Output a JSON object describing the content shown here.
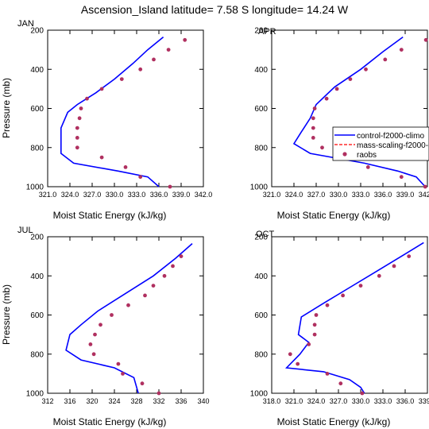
{
  "figure": {
    "title": "Ascension_Island  latitude= 7.58 S longitude= 14.24 W"
  },
  "legend": {
    "items": [
      {
        "label": "control-f2000-climo",
        "style": "solid",
        "color": "#0000ff"
      },
      {
        "label": "mass-scaling-f2000-",
        "style": "dashed",
        "color": "#ff0000"
      },
      {
        "label": "raobs",
        "style": "dots",
        "color": "#b03060"
      }
    ]
  },
  "chart_data": [
    {
      "type": "line",
      "panel": "JAN",
      "title": "JAN",
      "xlabel": "Moist Static Energy (kJ/kg)",
      "ylabel": "Pressure (mb)",
      "xlim": [
        321.0,
        342.0
      ],
      "ylim": [
        200,
        1000
      ],
      "y_reversed": true,
      "xticks": [
        "321.0",
        "324.0",
        "327.0",
        "330.0",
        "333.0",
        "336.0",
        "339.0",
        "342.0"
      ],
      "yticks": [
        200,
        400,
        600,
        800,
        1000
      ],
      "series": [
        {
          "name": "control-f2000-climo",
          "color": "#0000ff",
          "style": "solid",
          "points": [
            [
              336.6,
              235
            ],
            [
              334.5,
              300
            ],
            [
              332.5,
              370
            ],
            [
              330.0,
              450
            ],
            [
              327.5,
              520
            ],
            [
              325.0,
              580
            ],
            [
              323.7,
              620
            ],
            [
              322.8,
              700
            ],
            [
              322.8,
              830
            ],
            [
              324.5,
              880
            ],
            [
              330.5,
              920
            ],
            [
              334.5,
              950
            ],
            [
              336.0,
              1000
            ]
          ]
        },
        {
          "name": "raobs",
          "color": "#b03060",
          "style": "dots",
          "points": [
            [
              339.5,
              250
            ],
            [
              337.3,
              300
            ],
            [
              335.3,
              350
            ],
            [
              333.5,
              400
            ],
            [
              331.0,
              450
            ],
            [
              328.3,
              500
            ],
            [
              326.3,
              550
            ],
            [
              325.5,
              600
            ],
            [
              325.3,
              650
            ],
            [
              325.0,
              700
            ],
            [
              325.0,
              750
            ],
            [
              325.0,
              800
            ],
            [
              328.3,
              850
            ],
            [
              331.5,
              900
            ],
            [
              333.5,
              950
            ],
            [
              337.5,
              1000
            ]
          ]
        }
      ]
    },
    {
      "type": "line",
      "panel": "APR",
      "title": "APR",
      "xlabel": "Moist Static Energy (kJ/kg)",
      "ylabel": "",
      "xlim": [
        321.0,
        342.0
      ],
      "ylim": [
        200,
        1000
      ],
      "y_reversed": true,
      "xticks": [
        "321.0",
        "324.0",
        "327.0",
        "330.0",
        "333.0",
        "336.0",
        "339.0",
        "342.0"
      ],
      "yticks": [
        200,
        400,
        600,
        800,
        1000
      ],
      "series": [
        {
          "name": "control-f2000-climo",
          "color": "#0000ff",
          "style": "solid",
          "points": [
            [
              338.7,
              235
            ],
            [
              336.0,
              310
            ],
            [
              333.0,
              400
            ],
            [
              329.5,
              490
            ],
            [
              327.0,
              580
            ],
            [
              326.2,
              650
            ],
            [
              325.0,
              720
            ],
            [
              324.0,
              780
            ],
            [
              326.2,
              830
            ],
            [
              333.5,
              880
            ],
            [
              338.0,
              920
            ],
            [
              340.5,
              950
            ],
            [
              341.7,
              1000
            ]
          ]
        },
        {
          "name": "raobs",
          "color": "#b03060",
          "style": "dots",
          "points": [
            [
              341.8,
              250
            ],
            [
              338.5,
              300
            ],
            [
              336.3,
              350
            ],
            [
              333.7,
              400
            ],
            [
              331.6,
              450
            ],
            [
              329.8,
              500
            ],
            [
              328.4,
              550
            ],
            [
              326.8,
              600
            ],
            [
              326.6,
              650
            ],
            [
              326.6,
              700
            ],
            [
              326.6,
              750
            ],
            [
              327.8,
              800
            ],
            [
              331.3,
              850
            ],
            [
              334.0,
              900
            ],
            [
              338.5,
              950
            ],
            [
              341.7,
              1000
            ]
          ]
        }
      ]
    },
    {
      "type": "line",
      "panel": "JUL",
      "title": "JUL",
      "xlabel": "Moist Static Energy (kJ/kg)",
      "ylabel": "Pressure (mb)",
      "xlim": [
        312,
        340
      ],
      "ylim": [
        200,
        1000
      ],
      "y_reversed": true,
      "xticks": [
        "312",
        "316",
        "320",
        "324",
        "328",
        "332",
        "336",
        "340"
      ],
      "yticks": [
        200,
        400,
        600,
        800,
        1000
      ],
      "series": [
        {
          "name": "control-f2000-climo",
          "color": "#0000ff",
          "style": "solid",
          "points": [
            [
              338.0,
              235
            ],
            [
              335.0,
              310
            ],
            [
              331.0,
              400
            ],
            [
              326.0,
              490
            ],
            [
              321.0,
              580
            ],
            [
              318.0,
              650
            ],
            [
              316.0,
              700
            ],
            [
              315.3,
              780
            ],
            [
              318.0,
              830
            ],
            [
              324.0,
              870
            ],
            [
              327.5,
              920
            ],
            [
              328.3,
              1000
            ]
          ]
        },
        {
          "name": "raobs",
          "color": "#b03060",
          "style": "dots",
          "points": [
            [
              336.0,
              300
            ],
            [
              334.5,
              350
            ],
            [
              333.0,
              400
            ],
            [
              331.0,
              450
            ],
            [
              329.5,
              500
            ],
            [
              326.5,
              550
            ],
            [
              323.5,
              600
            ],
            [
              321.5,
              650
            ],
            [
              320.5,
              700
            ],
            [
              319.7,
              750
            ],
            [
              320.3,
              800
            ],
            [
              324.7,
              850
            ],
            [
              325.5,
              900
            ],
            [
              329.0,
              950
            ],
            [
              332.0,
              1000
            ]
          ]
        }
      ]
    },
    {
      "type": "line",
      "panel": "OCT",
      "title": "OCT",
      "xlabel": "Moist Static Energy (kJ/kg)",
      "ylabel": "",
      "xlim": [
        318.0,
        339.0
      ],
      "ylim": [
        200,
        1000
      ],
      "y_reversed": true,
      "xticks": [
        "318.0",
        "321.0",
        "324.0",
        "327.0",
        "330.0",
        "333.0",
        "336.0",
        "339.0"
      ],
      "yticks": [
        200,
        400,
        600,
        800,
        1000
      ],
      "series": [
        {
          "name": "control-f2000-climo",
          "color": "#0000ff",
          "style": "solid",
          "points": [
            [
              338.5,
              230
            ],
            [
              335.5,
              300
            ],
            [
              332.0,
              380
            ],
            [
              328.5,
              460
            ],
            [
              325.0,
              540
            ],
            [
              322.0,
              610
            ],
            [
              321.6,
              700
            ],
            [
              323.0,
              740
            ],
            [
              321.8,
              800
            ],
            [
              320.0,
              870
            ],
            [
              325.0,
              890
            ],
            [
              328.5,
              930
            ],
            [
              330.0,
              970
            ],
            [
              330.5,
              1000
            ]
          ]
        },
        {
          "name": "raobs",
          "color": "#b03060",
          "style": "dots",
          "points": [
            [
              336.5,
              300
            ],
            [
              334.5,
              350
            ],
            [
              332.5,
              400
            ],
            [
              330.0,
              450
            ],
            [
              327.6,
              500
            ],
            [
              325.5,
              550
            ],
            [
              324.0,
              600
            ],
            [
              323.8,
              650
            ],
            [
              323.8,
              700
            ],
            [
              323.0,
              750
            ],
            [
              320.5,
              800
            ],
            [
              321.5,
              850
            ],
            [
              325.5,
              900
            ],
            [
              327.3,
              950
            ],
            [
              330.2,
              1000
            ]
          ]
        }
      ]
    }
  ]
}
